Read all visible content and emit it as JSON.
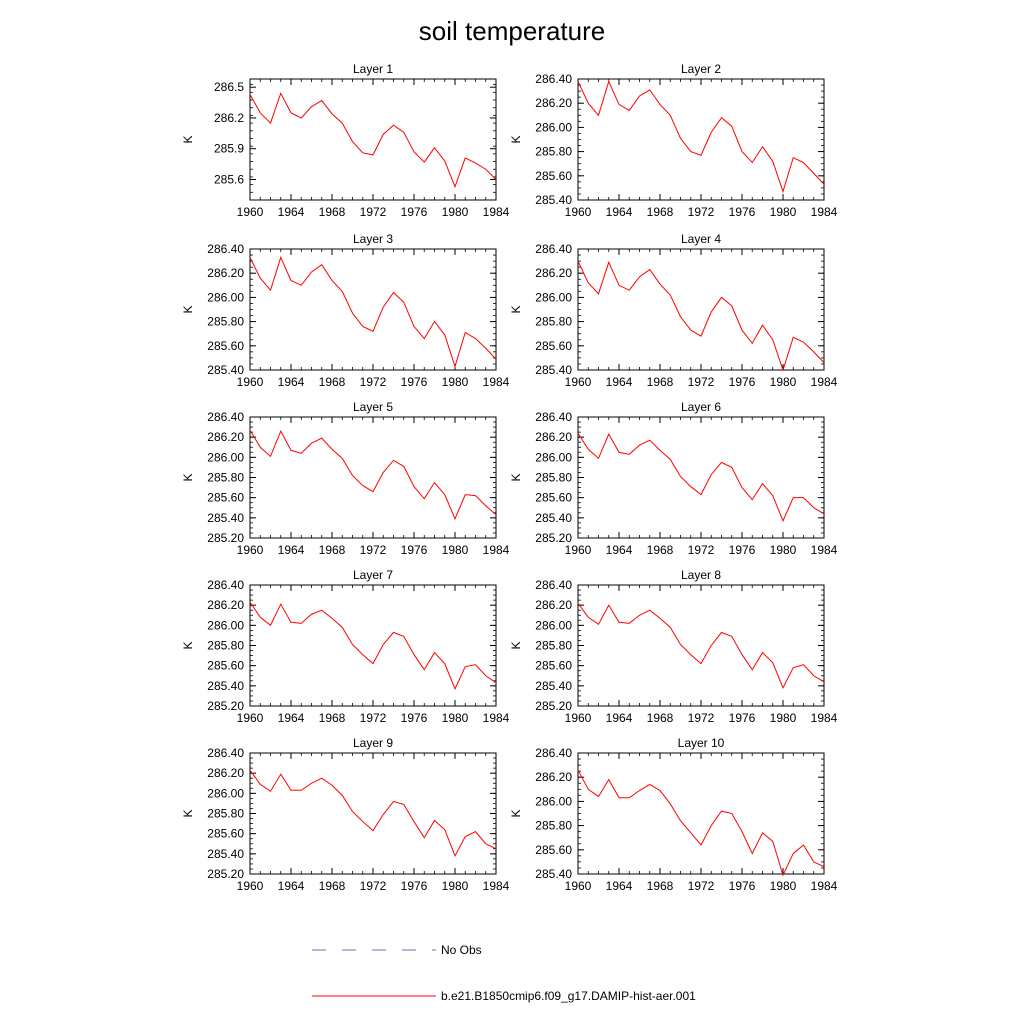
{
  "figure": {
    "title": "soil temperature",
    "legend": [
      {
        "label": "No Obs",
        "color": "#6a6ab8",
        "dash": "dashed"
      },
      {
        "label": "b.e21.B1850cmip6.f09_g17.DAMIP-hist-aer.001",
        "color": "#ff0000",
        "dash": "solid"
      }
    ]
  },
  "chart_data": [
    {
      "type": "line",
      "title": "Layer 1",
      "xlabel": "",
      "ylabel": "K",
      "xlim": [
        1960,
        1984
      ],
      "ylim": [
        285.4,
        286.58
      ],
      "xticks": [
        1960,
        1964,
        1968,
        1972,
        1976,
        1980,
        1984
      ],
      "yticks": [
        285.6,
        285.9,
        286.2,
        286.5
      ],
      "ytick_decimals": 1,
      "x": [
        1960,
        1961,
        1962,
        1963,
        1964,
        1965,
        1966,
        1967,
        1968,
        1969,
        1970,
        1971,
        1972,
        1973,
        1974,
        1975,
        1976,
        1977,
        1978,
        1979,
        1980,
        1981,
        1982,
        1983,
        1984
      ],
      "series": [
        {
          "name": "b.e21.B1850cmip6.f09_g17.DAMIP-hist-aer.001",
          "color": "#ff0000",
          "values": [
            286.43,
            286.25,
            286.15,
            286.44,
            286.25,
            286.2,
            286.31,
            286.37,
            286.24,
            286.15,
            285.97,
            285.86,
            285.84,
            286.04,
            286.13,
            286.06,
            285.87,
            285.77,
            285.91,
            285.78,
            285.53,
            285.81,
            285.76,
            285.7,
            285.6
          ]
        }
      ]
    },
    {
      "type": "line",
      "title": "Layer 2",
      "xlabel": "",
      "ylabel": "K",
      "xlim": [
        1960,
        1984
      ],
      "ylim": [
        285.4,
        286.4
      ],
      "xticks": [
        1960,
        1964,
        1968,
        1972,
        1976,
        1980,
        1984
      ],
      "yticks": [
        285.4,
        285.6,
        285.8,
        286.0,
        286.2,
        286.4
      ],
      "ytick_decimals": 2,
      "x": [
        1960,
        1961,
        1962,
        1963,
        1964,
        1965,
        1966,
        1967,
        1968,
        1969,
        1970,
        1971,
        1972,
        1973,
        1974,
        1975,
        1976,
        1977,
        1978,
        1979,
        1980,
        1981,
        1982,
        1983,
        1984
      ],
      "series": [
        {
          "name": "b.e21.B1850cmip6.f09_g17.DAMIP-hist-aer.001",
          "color": "#ff0000",
          "values": [
            286.38,
            286.2,
            286.1,
            286.38,
            286.19,
            286.14,
            286.26,
            286.31,
            286.19,
            286.1,
            285.91,
            285.8,
            285.77,
            285.96,
            286.08,
            286.01,
            285.8,
            285.71,
            285.84,
            285.72,
            285.47,
            285.75,
            285.71,
            285.62,
            285.53
          ]
        }
      ]
    },
    {
      "type": "line",
      "title": "Layer 3",
      "xlabel": "",
      "ylabel": "K",
      "xlim": [
        1960,
        1984
      ],
      "ylim": [
        285.4,
        286.4
      ],
      "xticks": [
        1960,
        1964,
        1968,
        1972,
        1976,
        1980,
        1984
      ],
      "yticks": [
        285.4,
        285.6,
        285.8,
        286.0,
        286.2,
        286.4
      ],
      "ytick_decimals": 2,
      "x": [
        1960,
        1961,
        1962,
        1963,
        1964,
        1965,
        1966,
        1967,
        1968,
        1969,
        1970,
        1971,
        1972,
        1973,
        1974,
        1975,
        1976,
        1977,
        1978,
        1979,
        1980,
        1981,
        1982,
        1983,
        1984
      ],
      "series": [
        {
          "name": "b.e21.B1850cmip6.f09_g17.DAMIP-hist-aer.001",
          "color": "#ff0000",
          "values": [
            286.33,
            286.16,
            286.06,
            286.33,
            286.14,
            286.1,
            286.21,
            286.27,
            286.14,
            286.05,
            285.87,
            285.76,
            285.72,
            285.92,
            286.04,
            285.96,
            285.76,
            285.66,
            285.8,
            285.69,
            285.43,
            285.71,
            285.66,
            285.58,
            285.49
          ]
        }
      ]
    },
    {
      "type": "line",
      "title": "Layer 4",
      "xlabel": "",
      "ylabel": "K",
      "xlim": [
        1960,
        1984
      ],
      "ylim": [
        285.4,
        286.4
      ],
      "xticks": [
        1960,
        1964,
        1968,
        1972,
        1976,
        1980,
        1984
      ],
      "yticks": [
        285.4,
        285.6,
        285.8,
        286.0,
        286.2,
        286.4
      ],
      "ytick_decimals": 2,
      "x": [
        1960,
        1961,
        1962,
        1963,
        1964,
        1965,
        1966,
        1967,
        1968,
        1969,
        1970,
        1971,
        1972,
        1973,
        1974,
        1975,
        1976,
        1977,
        1978,
        1979,
        1980,
        1981,
        1982,
        1983,
        1984
      ],
      "series": [
        {
          "name": "b.e21.B1850cmip6.f09_g17.DAMIP-hist-aer.001",
          "color": "#ff0000",
          "values": [
            286.3,
            286.12,
            286.03,
            286.29,
            286.1,
            286.06,
            286.17,
            286.23,
            286.11,
            286.02,
            285.84,
            285.73,
            285.68,
            285.88,
            286.0,
            285.93,
            285.73,
            285.62,
            285.77,
            285.65,
            285.4,
            285.67,
            285.63,
            285.55,
            285.46
          ]
        }
      ]
    },
    {
      "type": "line",
      "title": "Layer 5",
      "xlabel": "",
      "ylabel": "K",
      "xlim": [
        1960,
        1984
      ],
      "ylim": [
        285.2,
        286.4
      ],
      "xticks": [
        1960,
        1964,
        1968,
        1972,
        1976,
        1980,
        1984
      ],
      "yticks": [
        285.2,
        285.4,
        285.6,
        285.8,
        286.0,
        286.2,
        286.4
      ],
      "ytick_decimals": 2,
      "x": [
        1960,
        1961,
        1962,
        1963,
        1964,
        1965,
        1966,
        1967,
        1968,
        1969,
        1970,
        1971,
        1972,
        1973,
        1974,
        1975,
        1976,
        1977,
        1978,
        1979,
        1980,
        1981,
        1982,
        1983,
        1984
      ],
      "series": [
        {
          "name": "b.e21.B1850cmip6.f09_g17.DAMIP-hist-aer.001",
          "color": "#ff0000",
          "values": [
            286.27,
            286.1,
            286.01,
            286.26,
            286.07,
            286.04,
            286.14,
            286.19,
            286.08,
            285.99,
            285.82,
            285.72,
            285.66,
            285.85,
            285.97,
            285.91,
            285.71,
            285.59,
            285.75,
            285.63,
            285.39,
            285.63,
            285.62,
            285.52,
            285.43
          ]
        }
      ]
    },
    {
      "type": "line",
      "title": "Layer 6",
      "xlabel": "",
      "ylabel": "K",
      "xlim": [
        1960,
        1984
      ],
      "ylim": [
        285.2,
        286.4
      ],
      "xticks": [
        1960,
        1964,
        1968,
        1972,
        1976,
        1980,
        1984
      ],
      "yticks": [
        285.2,
        285.4,
        285.6,
        285.8,
        286.0,
        286.2,
        286.4
      ],
      "ytick_decimals": 2,
      "x": [
        1960,
        1961,
        1962,
        1963,
        1964,
        1965,
        1966,
        1967,
        1968,
        1969,
        1970,
        1971,
        1972,
        1973,
        1974,
        1975,
        1976,
        1977,
        1978,
        1979,
        1980,
        1981,
        1982,
        1983,
        1984
      ],
      "series": [
        {
          "name": "b.e21.B1850cmip6.f09_g17.DAMIP-hist-aer.001",
          "color": "#ff0000",
          "values": [
            286.24,
            286.08,
            285.99,
            286.23,
            286.05,
            286.03,
            286.12,
            286.17,
            286.07,
            285.98,
            285.81,
            285.71,
            285.63,
            285.83,
            285.95,
            285.9,
            285.7,
            285.58,
            285.74,
            285.62,
            285.37,
            285.6,
            285.6,
            285.5,
            285.44
          ]
        }
      ]
    },
    {
      "type": "line",
      "title": "Layer 7",
      "xlabel": "",
      "ylabel": "K",
      "xlim": [
        1960,
        1984
      ],
      "ylim": [
        285.2,
        286.4
      ],
      "xticks": [
        1960,
        1964,
        1968,
        1972,
        1976,
        1980,
        1984
      ],
      "yticks": [
        285.2,
        285.4,
        285.6,
        285.8,
        286.0,
        286.2,
        286.4
      ],
      "ytick_decimals": 2,
      "x": [
        1960,
        1961,
        1962,
        1963,
        1964,
        1965,
        1966,
        1967,
        1968,
        1969,
        1970,
        1971,
        1972,
        1973,
        1974,
        1975,
        1976,
        1977,
        1978,
        1979,
        1980,
        1981,
        1982,
        1983,
        1984
      ],
      "series": [
        {
          "name": "b.e21.B1850cmip6.f09_g17.DAMIP-hist-aer.001",
          "color": "#ff0000",
          "values": [
            286.23,
            286.08,
            286.0,
            286.21,
            286.03,
            286.02,
            286.11,
            286.15,
            286.07,
            285.98,
            285.81,
            285.71,
            285.62,
            285.81,
            285.93,
            285.89,
            285.71,
            285.56,
            285.73,
            285.62,
            285.37,
            285.59,
            285.61,
            285.5,
            285.43
          ]
        }
      ]
    },
    {
      "type": "line",
      "title": "Layer 8",
      "xlabel": "",
      "ylabel": "K",
      "xlim": [
        1960,
        1984
      ],
      "ylim": [
        285.2,
        286.4
      ],
      "xticks": [
        1960,
        1964,
        1968,
        1972,
        1976,
        1980,
        1984
      ],
      "yticks": [
        285.2,
        285.4,
        285.6,
        285.8,
        286.0,
        286.2,
        286.4
      ],
      "ytick_decimals": 2,
      "x": [
        1960,
        1961,
        1962,
        1963,
        1964,
        1965,
        1966,
        1967,
        1968,
        1969,
        1970,
        1971,
        1972,
        1973,
        1974,
        1975,
        1976,
        1977,
        1978,
        1979,
        1980,
        1981,
        1982,
        1983,
        1984
      ],
      "series": [
        {
          "name": "b.e21.B1850cmip6.f09_g17.DAMIP-hist-aer.001",
          "color": "#ff0000",
          "values": [
            286.22,
            286.08,
            286.01,
            286.2,
            286.03,
            286.02,
            286.1,
            286.15,
            286.07,
            285.98,
            285.81,
            285.71,
            285.62,
            285.8,
            285.93,
            285.89,
            285.71,
            285.56,
            285.73,
            285.63,
            285.38,
            285.58,
            285.61,
            285.5,
            285.44
          ]
        }
      ]
    },
    {
      "type": "line",
      "title": "Layer 9",
      "xlabel": "",
      "ylabel": "K",
      "xlim": [
        1960,
        1984
      ],
      "ylim": [
        285.2,
        286.4
      ],
      "xticks": [
        1960,
        1964,
        1968,
        1972,
        1976,
        1980,
        1984
      ],
      "yticks": [
        285.2,
        285.4,
        285.6,
        285.8,
        286.0,
        286.2,
        286.4
      ],
      "ytick_decimals": 2,
      "x": [
        1960,
        1961,
        1962,
        1963,
        1964,
        1965,
        1966,
        1967,
        1968,
        1969,
        1970,
        1971,
        1972,
        1973,
        1974,
        1975,
        1976,
        1977,
        1978,
        1979,
        1980,
        1981,
        1982,
        1983,
        1984
      ],
      "series": [
        {
          "name": "b.e21.B1850cmip6.f09_g17.DAMIP-hist-aer.001",
          "color": "#ff0000",
          "values": [
            286.23,
            286.09,
            286.02,
            286.19,
            286.03,
            286.03,
            286.1,
            286.15,
            286.08,
            285.98,
            285.82,
            285.72,
            285.63,
            285.79,
            285.92,
            285.89,
            285.72,
            285.56,
            285.73,
            285.64,
            285.38,
            285.57,
            285.62,
            285.5,
            285.45
          ]
        }
      ]
    },
    {
      "type": "line",
      "title": "Layer 10",
      "xlabel": "",
      "ylabel": "K",
      "xlim": [
        1960,
        1984
      ],
      "ylim": [
        285.4,
        286.4
      ],
      "xticks": [
        1960,
        1964,
        1968,
        1972,
        1976,
        1980,
        1984
      ],
      "yticks": [
        285.4,
        285.6,
        285.8,
        286.0,
        286.2,
        286.4
      ],
      "ytick_decimals": 2,
      "x": [
        1960,
        1961,
        1962,
        1963,
        1964,
        1965,
        1966,
        1967,
        1968,
        1969,
        1970,
        1971,
        1972,
        1973,
        1974,
        1975,
        1976,
        1977,
        1978,
        1979,
        1980,
        1981,
        1982,
        1983,
        1984
      ],
      "series": [
        {
          "name": "b.e21.B1850cmip6.f09_g17.DAMIP-hist-aer.001",
          "color": "#ff0000",
          "values": [
            286.26,
            286.1,
            286.04,
            286.18,
            286.03,
            286.03,
            286.09,
            286.14,
            286.09,
            285.98,
            285.84,
            285.74,
            285.64,
            285.8,
            285.92,
            285.9,
            285.75,
            285.57,
            285.74,
            285.67,
            285.39,
            285.57,
            285.64,
            285.5,
            285.46
          ]
        }
      ]
    }
  ]
}
